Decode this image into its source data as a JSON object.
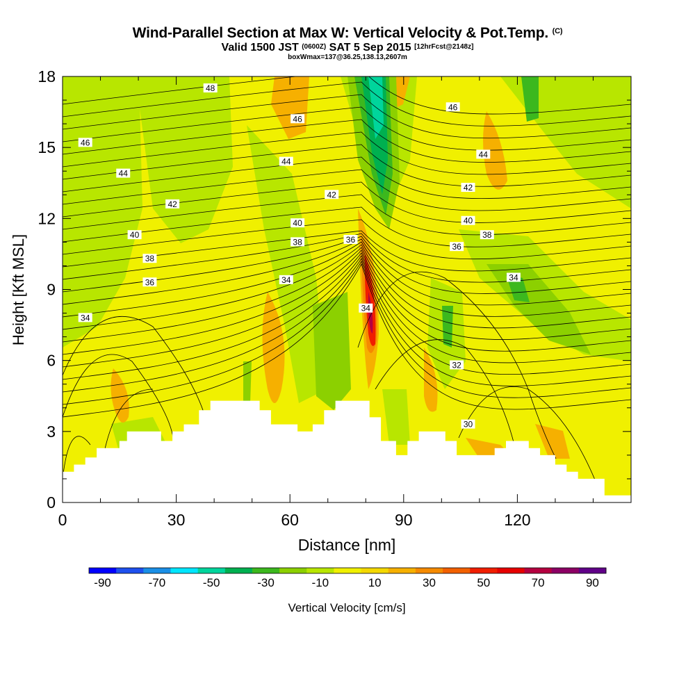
{
  "title": {
    "main": "Wind-Parallel Section at Max W: Vertical Velocity & Pot.Temp.",
    "copyright": "(C)",
    "valid_prefix": "Valid 1500 JST",
    "valid_utc": "(0600Z)",
    "valid_date": "SAT 5 Sep 2015",
    "forecast": "[12hrFcst@2148z]",
    "boxw": "boxWmax=137@36.25,138.13,2607m"
  },
  "chart_data": {
    "type": "contour-section",
    "xlabel": "Distance [nm]",
    "ylabel": "Height [Kft MSL]",
    "xlim": [
      0,
      150
    ],
    "ylim": [
      0,
      18
    ],
    "x_ticks": [
      0,
      30,
      60,
      90,
      120
    ],
    "y_ticks": [
      0,
      3,
      6,
      9,
      12,
      15,
      18
    ],
    "colorbar": {
      "label": "Vertical Velocity [cm/s]",
      "tick_labels": [
        "-90",
        "-70",
        "-50",
        "-30",
        "-10",
        "10",
        "30",
        "50",
        "70",
        "90"
      ],
      "colors": [
        "#0000ff",
        "#1e50ee",
        "#1a8fe6",
        "#00e6ff",
        "#00d59c",
        "#00b050",
        "#3cb81e",
        "#8cd000",
        "#b8e600",
        "#f0f000",
        "#f4d800",
        "#f6b000",
        "#f58a00",
        "#f26000",
        "#f01e00",
        "#e60000",
        "#b40040",
        "#8c0064",
        "#600088"
      ]
    },
    "contour_labels": [
      {
        "x": 39,
        "y": 17.5,
        "text": "48"
      },
      {
        "x": 103,
        "y": 16.7,
        "text": "46"
      },
      {
        "x": 62,
        "y": 16.2,
        "text": "46"
      },
      {
        "x": 6,
        "y": 15.2,
        "text": "46"
      },
      {
        "x": 111,
        "y": 14.7,
        "text": "44"
      },
      {
        "x": 59,
        "y": 14.4,
        "text": "44"
      },
      {
        "x": 16,
        "y": 13.9,
        "text": "44"
      },
      {
        "x": 71,
        "y": 13.0,
        "text": "42"
      },
      {
        "x": 107,
        "y": 13.3,
        "text": "42"
      },
      {
        "x": 29,
        "y": 12.6,
        "text": "42"
      },
      {
        "x": 62,
        "y": 11.8,
        "text": "40"
      },
      {
        "x": 107,
        "y": 11.9,
        "text": "40"
      },
      {
        "x": 19,
        "y": 11.3,
        "text": "40"
      },
      {
        "x": 112,
        "y": 11.3,
        "text": "38"
      },
      {
        "x": 62,
        "y": 11.0,
        "text": "38"
      },
      {
        "x": 76,
        "y": 11.1,
        "text": "36"
      },
      {
        "x": 104,
        "y": 10.8,
        "text": "36"
      },
      {
        "x": 23,
        "y": 10.3,
        "text": "38"
      },
      {
        "x": 23,
        "y": 9.3,
        "text": "36"
      },
      {
        "x": 59,
        "y": 9.4,
        "text": "34"
      },
      {
        "x": 119,
        "y": 9.5,
        "text": "34"
      },
      {
        "x": 80,
        "y": 8.2,
        "text": "34"
      },
      {
        "x": 6,
        "y": 7.8,
        "text": "34"
      },
      {
        "x": 104,
        "y": 5.8,
        "text": "32"
      },
      {
        "x": 107,
        "y": 3.3,
        "text": "30"
      }
    ]
  }
}
